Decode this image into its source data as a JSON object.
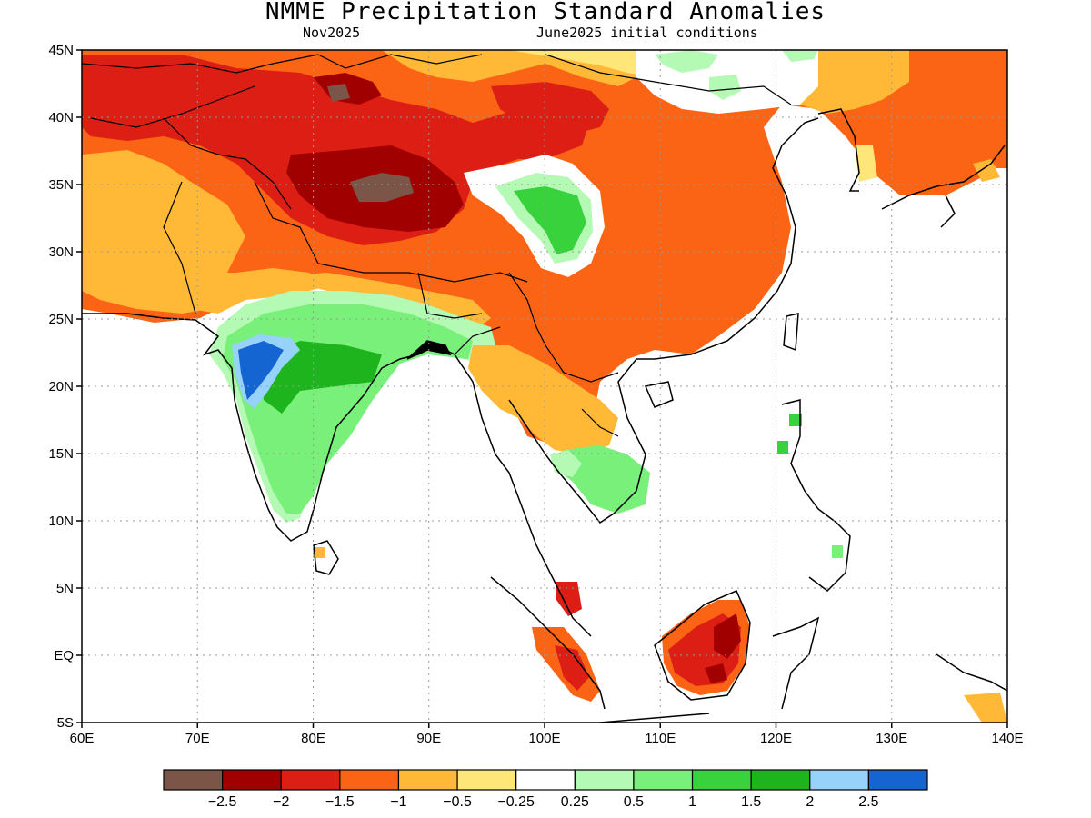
{
  "header": {
    "title": "NMME Precipitation Standard Anomalies",
    "target_month": "Nov2025",
    "initial_conditions": "June2025 initial conditions"
  },
  "map": {
    "lon_range": [
      60,
      140
    ],
    "lat_range": [
      -5,
      45
    ],
    "lon_ticks": [
      {
        "value": 60,
        "label": "60E"
      },
      {
        "value": 70,
        "label": "70E"
      },
      {
        "value": 80,
        "label": "80E"
      },
      {
        "value": 90,
        "label": "90E"
      },
      {
        "value": 100,
        "label": "100E"
      },
      {
        "value": 110,
        "label": "110E"
      },
      {
        "value": 120,
        "label": "120E"
      },
      {
        "value": 130,
        "label": "130E"
      },
      {
        "value": 140,
        "label": "140E"
      }
    ],
    "lat_ticks": [
      {
        "value": 45,
        "label": "45N"
      },
      {
        "value": 40,
        "label": "40N"
      },
      {
        "value": 35,
        "label": "35N"
      },
      {
        "value": 30,
        "label": "30N"
      },
      {
        "value": 25,
        "label": "25N"
      },
      {
        "value": 20,
        "label": "20N"
      },
      {
        "value": 15,
        "label": "15N"
      },
      {
        "value": 10,
        "label": "10N"
      },
      {
        "value": 5,
        "label": "5N"
      },
      {
        "value": 0,
        "label": "EQ"
      },
      {
        "value": -5,
        "label": "5S"
      }
    ],
    "grid": true
  },
  "colorbar": {
    "colors": [
      "#7a5548",
      "#a00000",
      "#dc1e14",
      "#fa6414",
      "#ffb937",
      "#ffe678",
      "#ffffff",
      "#b4fab4",
      "#78f07a",
      "#37d23c",
      "#1eb41e",
      "#96d2fa",
      "#1464d2"
    ],
    "labels": [
      "−2.5",
      "−2",
      "−1.5",
      "−1",
      "−0.5",
      "−0.25",
      "0.25",
      "0.5",
      "1",
      "1.5",
      "2",
      "2.5"
    ]
  }
}
